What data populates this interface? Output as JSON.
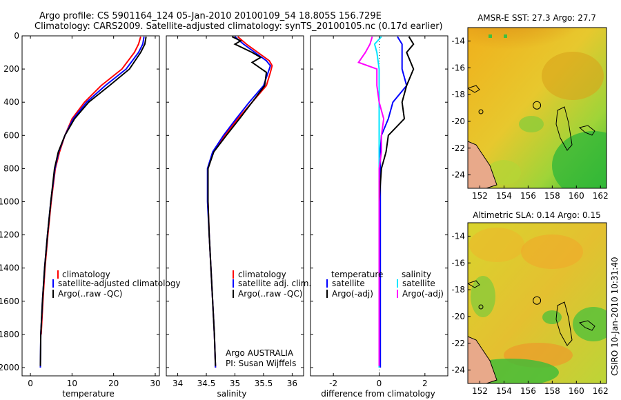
{
  "header": {
    "line1": "Argo profile: CS 5901164_124 05-Jan-2010 20100109_54 18.805S 156.729E",
    "line2": "Climatology: CARS2009. Satellite-adjusted climatology: synTS_20100105.nc (0.17d earlier)"
  },
  "colors": {
    "climatology": "#ff0000",
    "satellite": "#0000ff",
    "argo": "#000000",
    "sat_diff": "#00e5ff",
    "argo_adj": "#ff00ff"
  },
  "chart_data": [
    {
      "type": "line",
      "id": "temperature",
      "xlabel": "temperature",
      "ylabel": "",
      "xlim": [
        -2,
        31
      ],
      "ylim": [
        2050,
        0
      ],
      "xticks": [
        0,
        10,
        20,
        30
      ],
      "yticks": [
        0,
        200,
        400,
        600,
        800,
        1000,
        1200,
        1400,
        1600,
        1800,
        2000
      ],
      "legend": [
        "climatology",
        "satellite-adjusted climatology",
        "Argo(..raw -QC)"
      ],
      "series": [
        {
          "name": "climatology",
          "color": "#ff0000",
          "points": [
            [
              26.5,
              5
            ],
            [
              26,
              50
            ],
            [
              25,
              100
            ],
            [
              22,
              200
            ],
            [
              17,
              300
            ],
            [
              13,
              400
            ],
            [
              10,
              500
            ],
            [
              8.3,
              600
            ],
            [
              7,
              700
            ],
            [
              6,
              800
            ],
            [
              5,
              1000
            ],
            [
              4.2,
              1200
            ],
            [
              3.5,
              1400
            ],
            [
              3,
              1600
            ],
            [
              2.6,
              1800
            ]
          ]
        },
        {
          "name": "satellite-adjusted climatology",
          "color": "#0000ff",
          "points": [
            [
              27.3,
              5
            ],
            [
              27,
              50
            ],
            [
              26,
              100
            ],
            [
              23,
              200
            ],
            [
              18,
              300
            ],
            [
              13.5,
              400
            ],
            [
              10.3,
              500
            ],
            [
              8.3,
              600
            ],
            [
              6.8,
              700
            ],
            [
              5.9,
              800
            ],
            [
              4.9,
              1000
            ],
            [
              4.1,
              1200
            ],
            [
              3.4,
              1400
            ],
            [
              2.9,
              1600
            ],
            [
              2.5,
              1800
            ],
            [
              2.4,
              2000
            ]
          ]
        },
        {
          "name": "Argo(..raw -QC)",
          "color": "#000000",
          "points": [
            [
              27.8,
              5
            ],
            [
              27.5,
              50
            ],
            [
              26.5,
              100
            ],
            [
              23.8,
              200
            ],
            [
              19,
              300
            ],
            [
              14,
              400
            ],
            [
              10.6,
              500
            ],
            [
              8.3,
              600
            ],
            [
              6.7,
              700
            ],
            [
              5.8,
              800
            ],
            [
              4.9,
              1000
            ],
            [
              4.1,
              1200
            ],
            [
              3.4,
              1400
            ],
            [
              2.9,
              1600
            ],
            [
              2.5,
              1800
            ],
            [
              2.4,
              1990
            ]
          ]
        }
      ]
    },
    {
      "type": "line",
      "id": "salinity",
      "xlabel": "salinity",
      "xlim": [
        33.8,
        36.2
      ],
      "ylim": [
        2050,
        0
      ],
      "xticks": [
        34,
        34.5,
        35,
        35.5,
        36
      ],
      "legend": [
        "climatology",
        "satellite adj. clim.",
        "Argo(..raw -QC)"
      ],
      "series": [
        {
          "name": "climatology",
          "color": "#ff0000",
          "points": [
            [
              35.05,
              5
            ],
            [
              35.2,
              50
            ],
            [
              35.4,
              100
            ],
            [
              35.6,
              150
            ],
            [
              35.65,
              180
            ],
            [
              35.62,
              220
            ],
            [
              35.55,
              300
            ],
            [
              35.3,
              400
            ],
            [
              35.05,
              500
            ],
            [
              34.82,
              600
            ],
            [
              34.62,
              700
            ],
            [
              34.53,
              800
            ],
            [
              34.53,
              1000
            ],
            [
              34.55,
              1200
            ],
            [
              34.58,
              1400
            ],
            [
              34.61,
              1600
            ],
            [
              34.64,
              1800
            ],
            [
              34.66,
              2000
            ]
          ]
        },
        {
          "name": "satellite adj. clim.",
          "color": "#0000ff",
          "points": [
            [
              35.0,
              5
            ],
            [
              35.15,
              50
            ],
            [
              35.35,
              100
            ],
            [
              35.55,
              150
            ],
            [
              35.62,
              180
            ],
            [
              35.58,
              220
            ],
            [
              35.5,
              300
            ],
            [
              35.25,
              400
            ],
            [
              35.02,
              500
            ],
            [
              34.8,
              600
            ],
            [
              34.61,
              700
            ],
            [
              34.52,
              800
            ],
            [
              34.52,
              1000
            ],
            [
              34.55,
              1200
            ],
            [
              34.58,
              1400
            ],
            [
              34.61,
              1600
            ],
            [
              34.64,
              1800
            ],
            [
              34.66,
              2000
            ]
          ]
        },
        {
          "name": "Argo(..raw -QC)",
          "color": "#000000",
          "points": [
            [
              34.95,
              5
            ],
            [
              35.1,
              30
            ],
            [
              35.0,
              50
            ],
            [
              35.3,
              100
            ],
            [
              35.45,
              130
            ],
            [
              35.3,
              160
            ],
            [
              35.55,
              220
            ],
            [
              35.52,
              300
            ],
            [
              35.3,
              400
            ],
            [
              35.08,
              500
            ],
            [
              34.85,
              600
            ],
            [
              34.63,
              700
            ],
            [
              34.53,
              800
            ],
            [
              34.53,
              1000
            ],
            [
              34.55,
              1200
            ],
            [
              34.58,
              1400
            ],
            [
              34.61,
              1600
            ],
            [
              34.64,
              1800
            ],
            [
              34.66,
              1990
            ]
          ]
        }
      ],
      "annotation": [
        "Argo AUSTRALIA",
        "PI: Susan Wijffels"
      ]
    },
    {
      "type": "line",
      "id": "difference",
      "xlabel": "difference from climatology",
      "xlim": [
        -3,
        3
      ],
      "ylim": [
        2050,
        0
      ],
      "xticks": [
        -2,
        0,
        2
      ],
      "legend_temperature": {
        "heading": "temperature",
        "items": [
          "satellite",
          "Argo(-adj)"
        ]
      },
      "legend_salinity": {
        "heading": "salinity",
        "items": [
          "satellite",
          "Argo(-adj)"
        ]
      },
      "series": [
        {
          "name": "temperature satellite",
          "color": "#0000ff",
          "points": [
            [
              0.8,
              5
            ],
            [
              1.0,
              50
            ],
            [
              1.0,
              100
            ],
            [
              1.0,
              200
            ],
            [
              1.2,
              300
            ],
            [
              0.6,
              400
            ],
            [
              0.4,
              500
            ],
            [
              0.1,
              600
            ],
            [
              0.05,
              700
            ],
            [
              0.05,
              800
            ],
            [
              0.05,
              1000
            ],
            [
              0.05,
              1200
            ],
            [
              0.05,
              1400
            ],
            [
              0.05,
              1600
            ],
            [
              0.05,
              1800
            ],
            [
              0.05,
              2000
            ]
          ]
        },
        {
          "name": "temperature Argo(-adj)",
          "color": "#000000",
          "points": [
            [
              1.3,
              5
            ],
            [
              1.5,
              50
            ],
            [
              1.2,
              100
            ],
            [
              1.5,
              200
            ],
            [
              1.2,
              300
            ],
            [
              1.0,
              400
            ],
            [
              1.1,
              500
            ],
            [
              0.4,
              600
            ],
            [
              0.3,
              700
            ],
            [
              0.1,
              800
            ],
            [
              0.0,
              1000
            ],
            [
              0.0,
              1200
            ],
            [
              0.0,
              1400
            ],
            [
              0.0,
              1600
            ],
            [
              0.0,
              1800
            ],
            [
              0.0,
              1990
            ]
          ]
        },
        {
          "name": "salinity satellite",
          "color": "#00e5ff",
          "points": [
            [
              0.1,
              5
            ],
            [
              -0.2,
              50
            ],
            [
              -0.1,
              100
            ],
            [
              0.0,
              200
            ],
            [
              0.0,
              300
            ],
            [
              0.0,
              400
            ],
            [
              0.0,
              500
            ],
            [
              0.0,
              600
            ],
            [
              0.0,
              700
            ],
            [
              0.0,
              800
            ],
            [
              0.0,
              1000
            ],
            [
              0.0,
              1200
            ],
            [
              0.0,
              1400
            ],
            [
              0.0,
              1600
            ],
            [
              0.0,
              1800
            ],
            [
              0.0,
              2000
            ]
          ]
        },
        {
          "name": "salinity Argo(-adj)",
          "color": "#ff00ff",
          "points": [
            [
              -0.3,
              5
            ],
            [
              -0.4,
              50
            ],
            [
              -0.6,
              100
            ],
            [
              -0.9,
              160
            ],
            [
              -0.1,
              200
            ],
            [
              -0.1,
              300
            ],
            [
              0.0,
              400
            ],
            [
              0.2,
              500
            ],
            [
              0.1,
              600
            ],
            [
              0.1,
              700
            ],
            [
              0.0,
              800
            ],
            [
              0.0,
              1000
            ],
            [
              0.0,
              1200
            ],
            [
              0.0,
              1400
            ],
            [
              0.0,
              1600
            ],
            [
              0.0,
              1800
            ],
            [
              0.0,
              1990
            ]
          ]
        }
      ]
    },
    {
      "type": "heatmap",
      "id": "sst_map",
      "title": "AMSR-E SST: 27.3 Argo: 27.7",
      "xlim": [
        151,
        162.5
      ],
      "ylim": [
        -25,
        -13
      ],
      "xticks": [
        152,
        154,
        156,
        158,
        160,
        162
      ],
      "yticks": [
        -14,
        -16,
        -18,
        -20,
        -22,
        -24
      ],
      "argo_location": [
        156.729,
        -18.805
      ]
    },
    {
      "type": "heatmap",
      "id": "sla_map",
      "title": "Altimetric SLA: 0.14 Argo: 0.15",
      "xlim": [
        151,
        162.5
      ],
      "ylim": [
        -25,
        -13
      ],
      "xticks": [
        152,
        154,
        156,
        158,
        160,
        162
      ],
      "yticks": [
        -14,
        -16,
        -18,
        -20,
        -22,
        -24
      ],
      "argo_location": [
        156.729,
        -18.805
      ]
    }
  ],
  "footer": {
    "stamp": "CSIRO 10-Jan-2010 10:31:40"
  }
}
